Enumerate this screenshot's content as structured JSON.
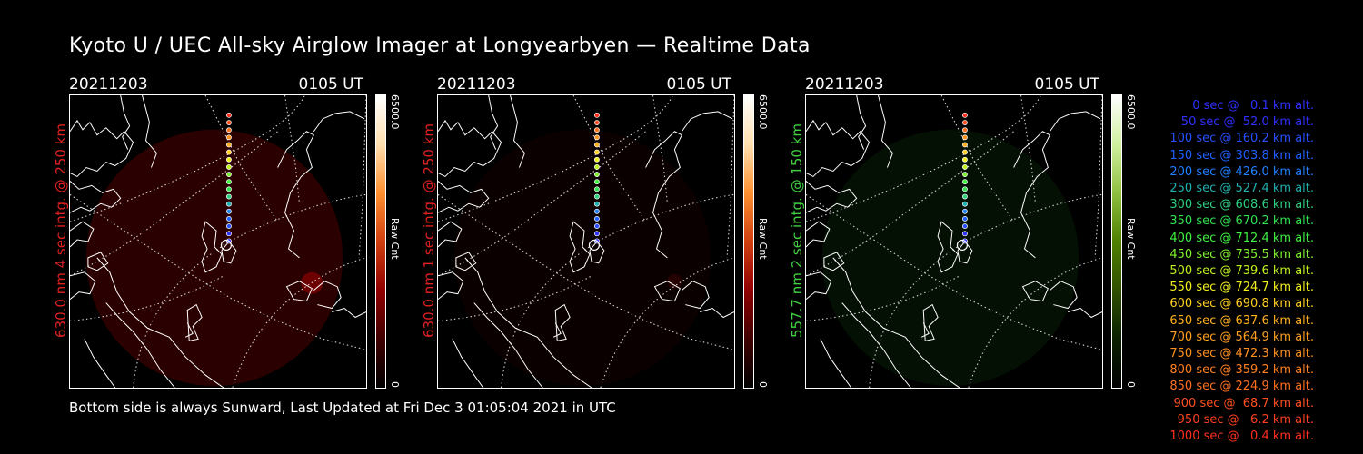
{
  "title": "Kyoto U / UEC All-sky Airglow Imager at Longyearbyen — Realtime Data",
  "footer": "Bottom side is always Sunward, Last Updated at Fri Dec  3 01:05:04 2021 in UTC",
  "panels": [
    {
      "date": "20211203",
      "time": "0105 UT",
      "label": "630.0 nm 4 sec intg. @ 250 km",
      "label_color": "#e02020",
      "colorbar_max": "6500.0",
      "colorbar_unit": "Raw Cnt",
      "colorbar_min": "0",
      "colormap": "red"
    },
    {
      "date": "20211203",
      "time": "0105 UT",
      "label": "630.0 nm 1 sec intg. @ 250 km",
      "label_color": "#e02020",
      "colorbar_max": "6500.0",
      "colorbar_unit": "Raw Cnt",
      "colorbar_min": "0",
      "colormap": "red"
    },
    {
      "date": "20211203",
      "time": "0105 UT",
      "label": "557.7 nm 2 sec intg. @ 150 km",
      "label_color": "#40d040",
      "colorbar_max": "6500.0",
      "colorbar_unit": "Raw Cnt",
      "colorbar_min": "0",
      "colormap": "green"
    }
  ],
  "legend": [
    {
      "text": "0 sec @   0.1 km alt.",
      "color": "#3030ff"
    },
    {
      "text": "50 sec @  52.0 km alt.",
      "color": "#3030ff"
    },
    {
      "text": "100 sec @ 160.2 km alt.",
      "color": "#2850ff"
    },
    {
      "text": "150 sec @ 303.8 km alt.",
      "color": "#2060ff"
    },
    {
      "text": "200 sec @ 426.0 km alt.",
      "color": "#2080ff"
    },
    {
      "text": "250 sec @ 527.4 km alt.",
      "color": "#20b0b0"
    },
    {
      "text": "300 sec @ 608.6 km alt.",
      "color": "#30d080"
    },
    {
      "text": "350 sec @ 670.2 km alt.",
      "color": "#30e050"
    },
    {
      "text": "400 sec @ 712.4 km alt.",
      "color": "#40f040"
    },
    {
      "text": "450 sec @ 735.5 km alt.",
      "color": "#80f030"
    },
    {
      "text": "500 sec @ 739.6 km alt.",
      "color": "#c0f020"
    },
    {
      "text": "550 sec @ 724.7 km alt.",
      "color": "#f0f020"
    },
    {
      "text": "600 sec @ 690.8 km alt.",
      "color": "#ffd020"
    },
    {
      "text": "650 sec @ 637.6 km alt.",
      "color": "#ffb020"
    },
    {
      "text": "700 sec @ 564.9 km alt.",
      "color": "#ffa020"
    },
    {
      "text": "750 sec @ 472.3 km alt.",
      "color": "#ff9020"
    },
    {
      "text": "800 sec @ 359.2 km alt.",
      "color": "#ff8020"
    },
    {
      "text": "850 sec @ 224.9 km alt.",
      "color": "#ff7020"
    },
    {
      "text": "900 sec @  68.7 km alt.",
      "color": "#ff5020"
    },
    {
      "text": "950 sec @   6.2 km alt.",
      "color": "#ff4020"
    },
    {
      "text": "1000 sec @   0.4 km alt.",
      "color": "#ff3020"
    }
  ]
}
